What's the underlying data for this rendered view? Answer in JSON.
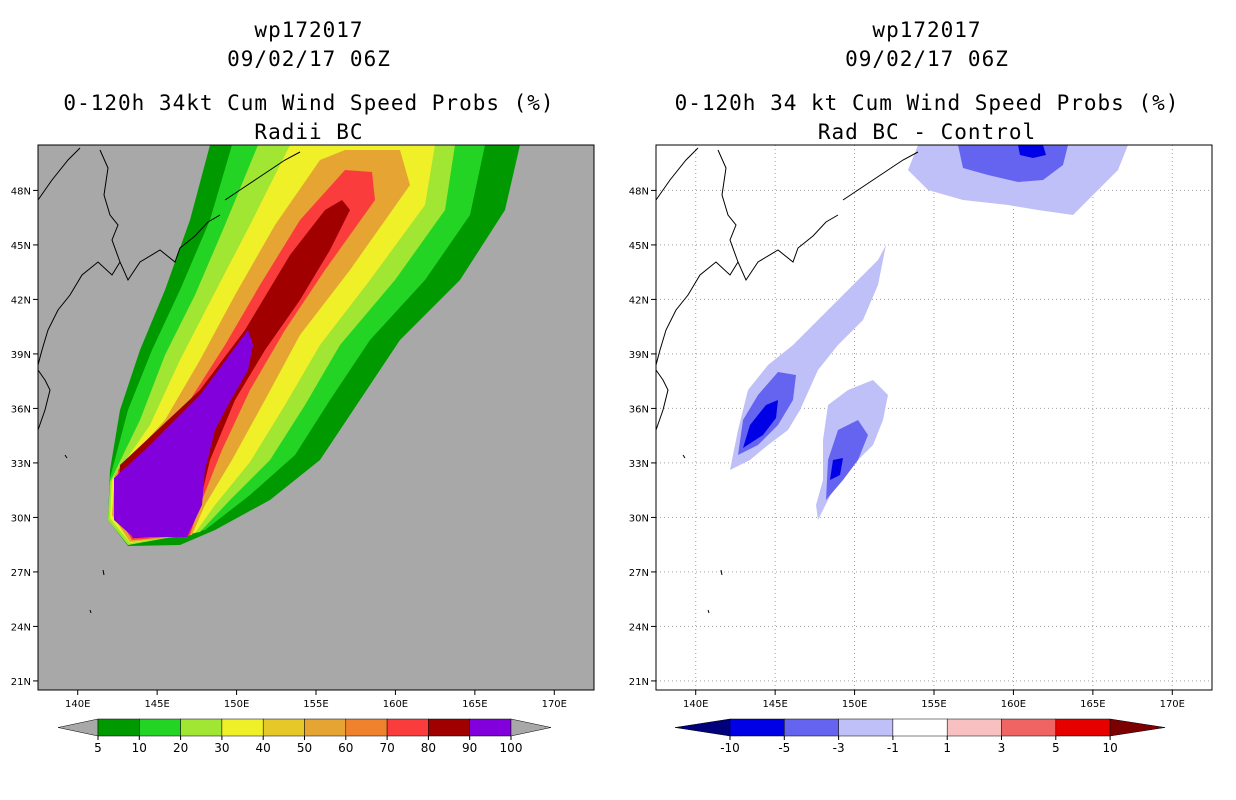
{
  "panels": [
    {
      "storm_id": "wp172017",
      "datetime": "09/02/17 06Z",
      "title": "0-120h 34kt Cum Wind Speed Probs (%)",
      "subtitle": "Radii BC",
      "background": "#a8a8a8",
      "colorbar": {
        "levels": [
          "5",
          "10",
          "20",
          "30",
          "40",
          "50",
          "60",
          "70",
          "80",
          "90",
          "100"
        ],
        "colors": [
          "#009a00",
          "#24d424",
          "#a0e632",
          "#f0f028",
          "#e6c828",
          "#e6a532",
          "#f0822d",
          "#fa3c3c",
          "#a00000",
          "#8200dc"
        ],
        "end_colors": [
          "#a8a8a8",
          "#a8a8a8"
        ]
      }
    },
    {
      "storm_id": "wp172017",
      "datetime": "09/02/17 06Z",
      "title": "0-120h 34 kt Cum Wind Speed Probs (%)",
      "subtitle": "Rad BC - Control",
      "background": "#ffffff",
      "colorbar": {
        "levels": [
          "-10",
          "-5",
          "-3",
          "-1",
          "1",
          "3",
          "5",
          "10"
        ],
        "colors": [
          "#0000e6",
          "#6464f0",
          "#c0c0f8",
          "#ffffff",
          "#f8c0c0",
          "#f06464",
          "#e60000"
        ],
        "end_colors": [
          "#00007d",
          "#7d0000"
        ]
      }
    }
  ],
  "axes": {
    "lon_labels": [
      "140E",
      "145E",
      "150E",
      "155E",
      "160E",
      "165E",
      "170E"
    ],
    "lat_labels": [
      "48N",
      "45N",
      "42N",
      "39N",
      "36N",
      "33N",
      "30N",
      "27N",
      "24N",
      "21N"
    ],
    "lon_values": [
      140,
      145,
      150,
      155,
      160,
      165,
      170
    ],
    "lat_values": [
      48,
      45,
      42,
      39,
      36,
      33,
      30,
      27,
      24,
      21
    ],
    "lon_range": [
      137.5,
      172.5
    ],
    "lat_range": [
      20.5,
      50.5
    ]
  }
}
